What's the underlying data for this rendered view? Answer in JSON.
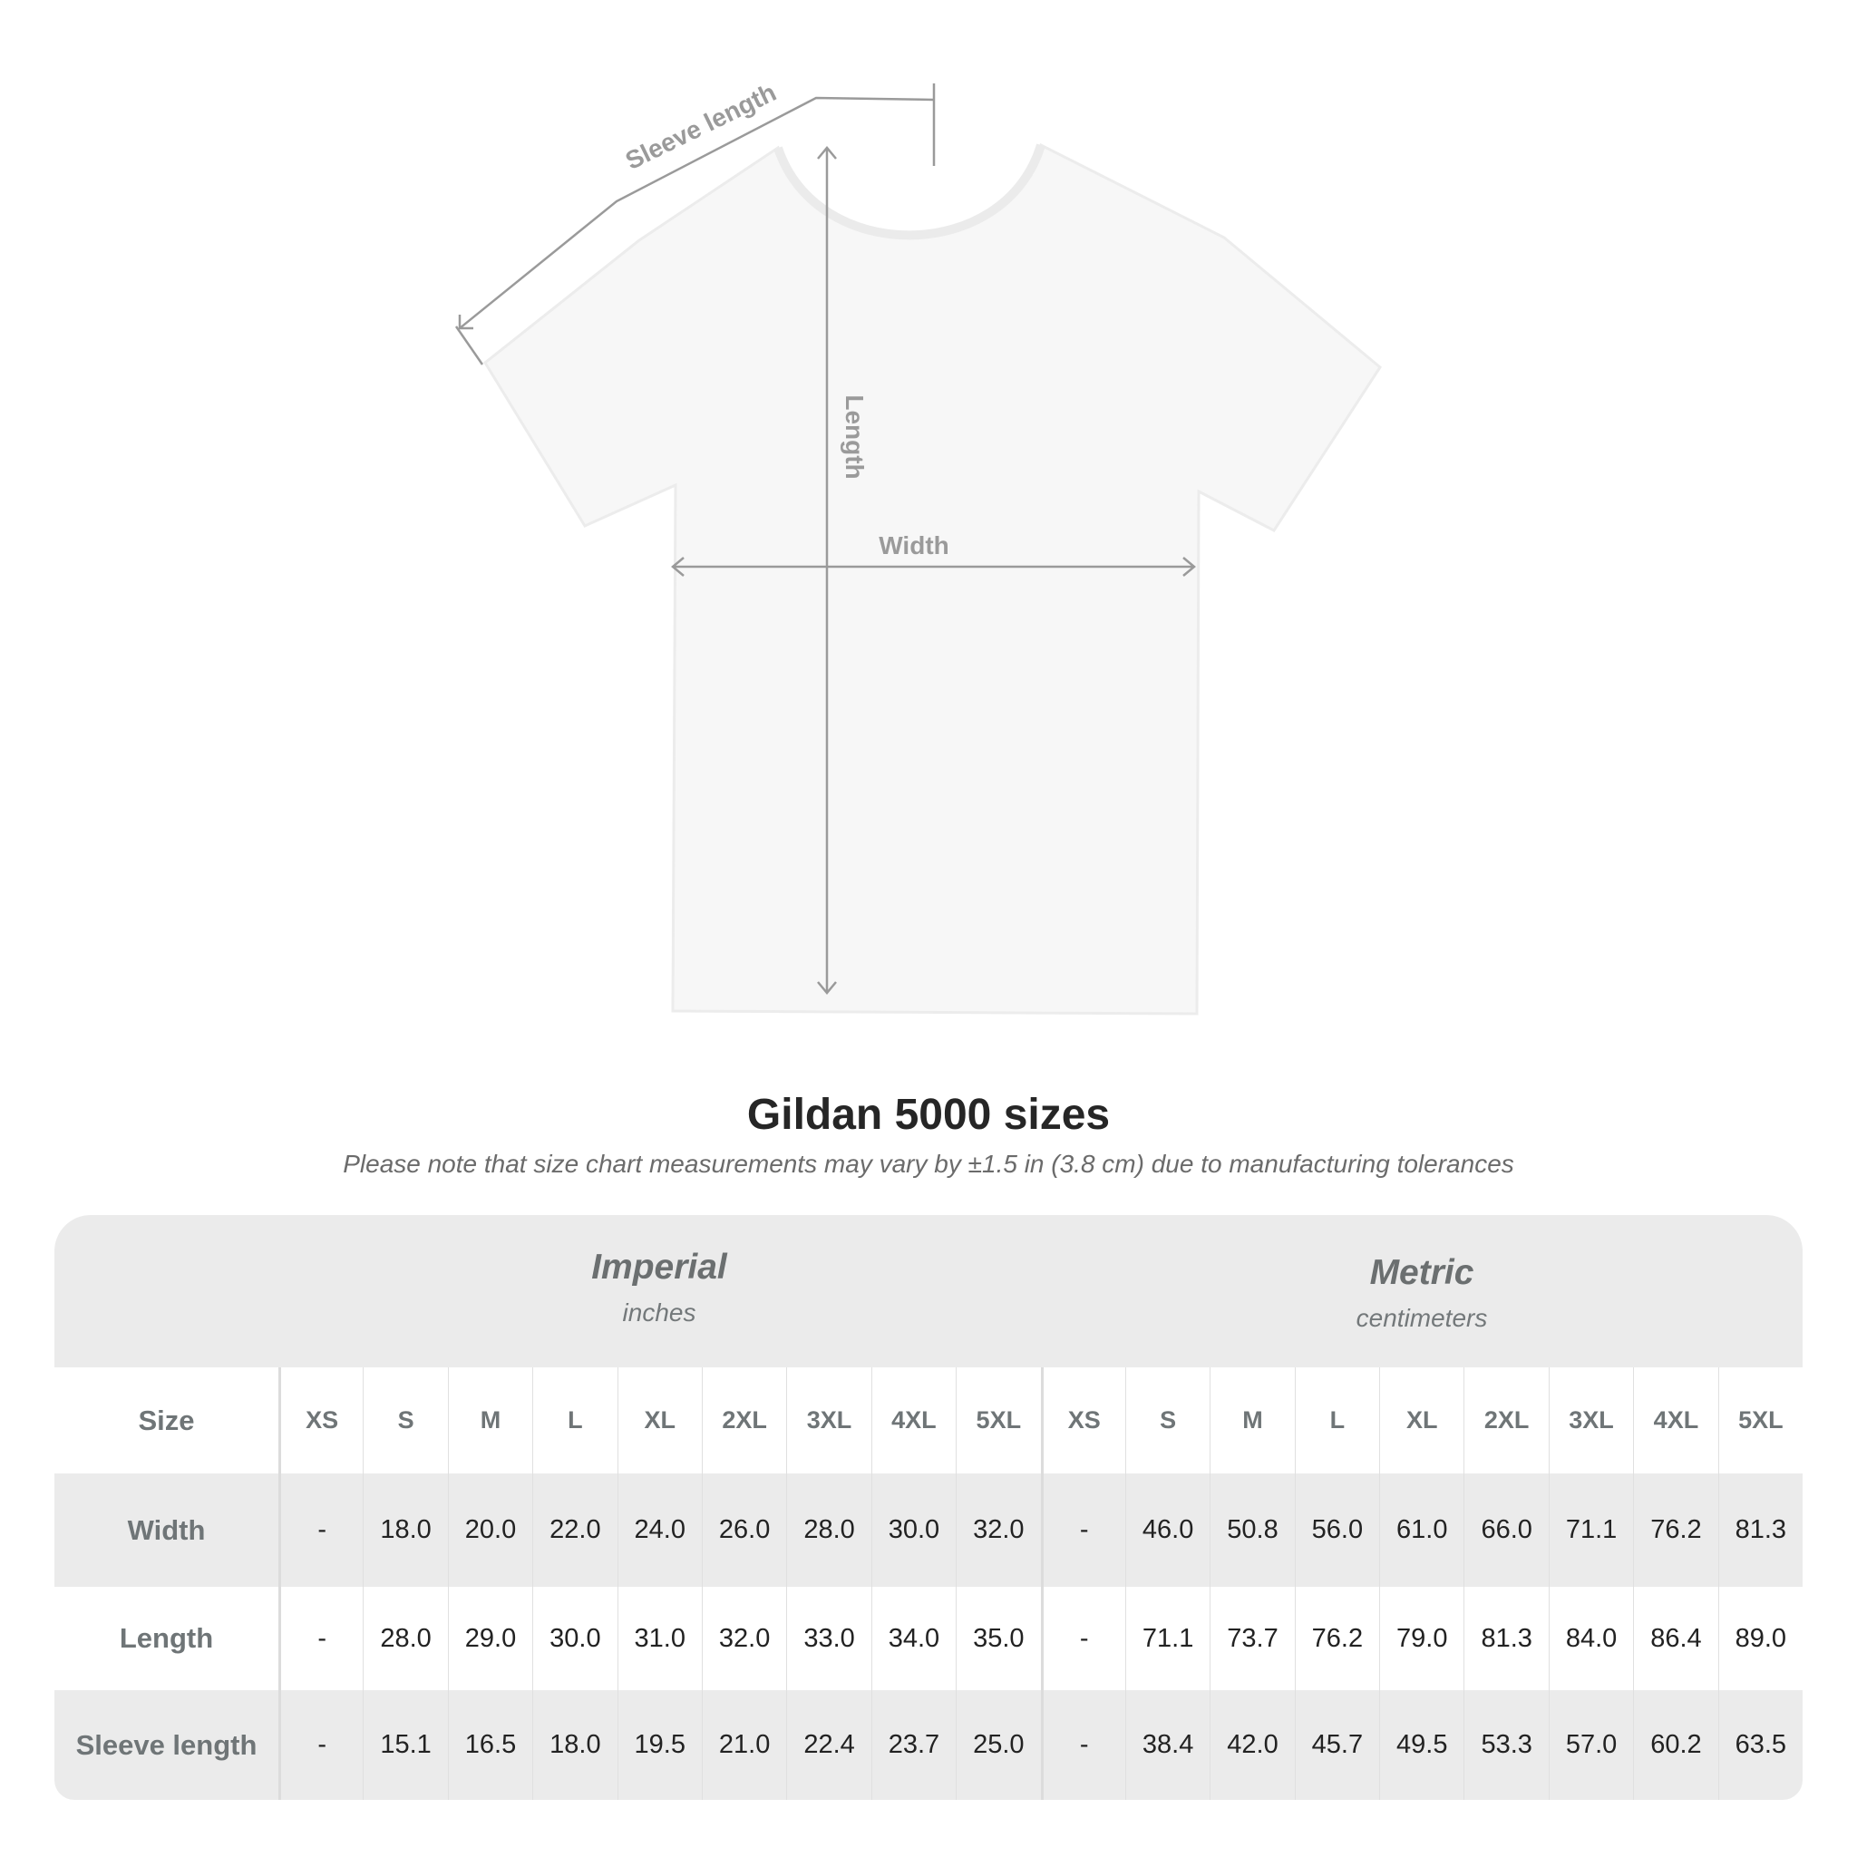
{
  "diagram": {
    "sleeve_label": "Sleeve length",
    "length_label": "Length",
    "width_label": "Width",
    "shirt_color": "#f7f7f7"
  },
  "title": "Gildan 5000 sizes",
  "subtitle": "Please note that size chart measurements may vary by ±1.5 in (3.8 cm) due to manufacturing tolerances",
  "table": {
    "imperial": {
      "name": "Imperial",
      "unit": "inches"
    },
    "metric": {
      "name": "Metric",
      "unit": "centimeters"
    },
    "size_label": "Size",
    "sizes": [
      "XS",
      "S",
      "M",
      "L",
      "XL",
      "2XL",
      "3XL",
      "4XL",
      "5XL"
    ],
    "rows": [
      {
        "label": "Width",
        "imperial": [
          "-",
          "18.0",
          "20.0",
          "22.0",
          "24.0",
          "26.0",
          "28.0",
          "30.0",
          "32.0"
        ],
        "metric": [
          "-",
          "46.0",
          "50.8",
          "56.0",
          "61.0",
          "66.0",
          "71.1",
          "76.2",
          "81.3"
        ]
      },
      {
        "label": "Length",
        "imperial": [
          "-",
          "28.0",
          "29.0",
          "30.0",
          "31.0",
          "32.0",
          "33.0",
          "34.0",
          "35.0"
        ],
        "metric": [
          "-",
          "71.1",
          "73.7",
          "76.2",
          "79.0",
          "81.3",
          "84.0",
          "86.4",
          "89.0"
        ]
      },
      {
        "label": "Sleeve length",
        "imperial": [
          "-",
          "15.1",
          "16.5",
          "18.0",
          "19.5",
          "21.0",
          "22.4",
          "23.7",
          "25.0"
        ],
        "metric": [
          "-",
          "38.4",
          "42.0",
          "45.7",
          "49.5",
          "53.3",
          "57.0",
          "60.2",
          "63.5"
        ]
      }
    ],
    "colors": {
      "band": "#ebebeb",
      "header_text": "#6f7577",
      "value_text": "#222222"
    }
  }
}
